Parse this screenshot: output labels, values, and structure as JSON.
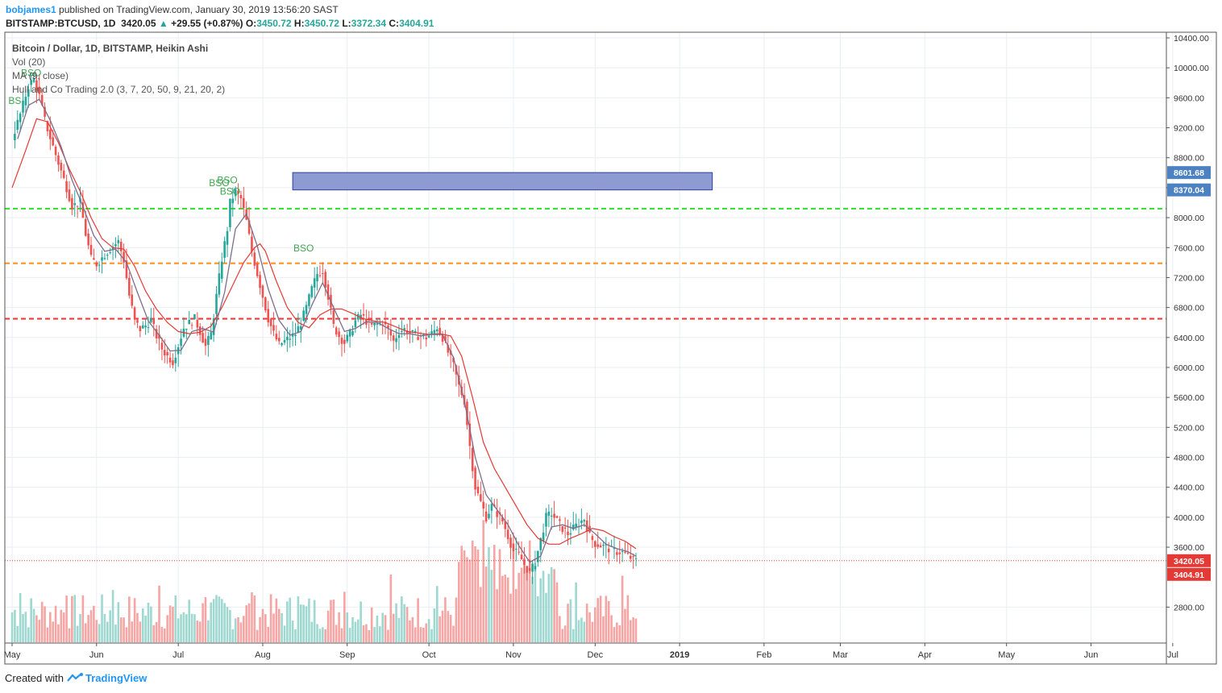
{
  "header": {
    "user": "bobjames1",
    "published": "published on TradingView.com, January 30, 2019 13:56:20 SAST",
    "symbol": "BITSTAMP:BTCUSD, 1D",
    "last": "3420.05",
    "change": "+29.55 (+0.87%)",
    "open_label": "O:",
    "open": "3450.72",
    "high_label": "H:",
    "high": "3450.72",
    "low_label": "L:",
    "low": "3372.34",
    "close_label": "C:",
    "close": "3404.91"
  },
  "legend": {
    "title": "Bitcoin / Dollar, 1D, BITSTAMP, Heikin Ashi",
    "vol": "Vol (20)",
    "ma": "MA (9, close)",
    "hc": "Hull and Co Trading 2.0 (3, 7, 20, 50, 9, 21, 20, 2)"
  },
  "footer": {
    "created": "Created with",
    "brand": "TradingView"
  },
  "colors": {
    "up": "#26a69a",
    "down": "#ef5350",
    "vol_up": "#9ed8d0",
    "vol_down": "#f5a5a3",
    "ma_fast": "#7e6d8a",
    "ma_slow": "#e53935",
    "green_level": "#38e038",
    "orange_level": "#ff9933",
    "red_level": "#f23c3c",
    "zone": "#8d9bd2",
    "label_blue": "#4c82c2",
    "label_red": "#e53935",
    "bso": "#3ea64d"
  },
  "chart_data": {
    "type": "candlestick",
    "style": "Heikin Ashi",
    "ylim": [
      2600,
      10400
    ],
    "y_ticks": [
      "10400.00",
      "10000.00",
      "9600.00",
      "9200.00",
      "8800.00",
      "8400.00",
      "8000.00",
      "7600.00",
      "7200.00",
      "6800.00",
      "6400.00",
      "6000.00",
      "5600.00",
      "5200.00",
      "4800.00",
      "4400.00",
      "4000.00",
      "3600.00",
      "2800.00"
    ],
    "x_ticks": [
      "May",
      "Jun",
      "Jul",
      "Aug",
      "Sep",
      "Oct",
      "Nov",
      "Dec",
      "2019",
      "Feb",
      "Mar",
      "Apr",
      "May",
      "Jun",
      "Jul"
    ],
    "x_tick_days": [
      0,
      31,
      61,
      92,
      123,
      153,
      184,
      214,
      245,
      276,
      304,
      335,
      365,
      396,
      426
    ],
    "price_series": [
      [
        0,
        9050
      ],
      [
        3,
        9380
      ],
      [
        6,
        9760
      ],
      [
        8,
        9850
      ],
      [
        10,
        9620
      ],
      [
        12,
        9300
      ],
      [
        15,
        8950
      ],
      [
        18,
        8620
      ],
      [
        20,
        8400
      ],
      [
        22,
        8160
      ],
      [
        25,
        8200
      ],
      [
        27,
        7780
      ],
      [
        29,
        7450
      ],
      [
        31,
        7380
      ],
      [
        34,
        7510
      ],
      [
        37,
        7620
      ],
      [
        39,
        7680
      ],
      [
        41,
        7430
      ],
      [
        43,
        6960
      ],
      [
        45,
        6620
      ],
      [
        47,
        6510
      ],
      [
        49,
        6560
      ],
      [
        51,
        6630
      ],
      [
        53,
        6420
      ],
      [
        55,
        6250
      ],
      [
        57,
        6150
      ],
      [
        59,
        6080
      ],
      [
        61,
        6300
      ],
      [
        63,
        6530
      ],
      [
        65,
        6590
      ],
      [
        67,
        6650
      ],
      [
        69,
        6480
      ],
      [
        71,
        6280
      ],
      [
        73,
        6450
      ],
      [
        75,
        6950
      ],
      [
        77,
        7450
      ],
      [
        79,
        7850
      ],
      [
        80,
        8200
      ],
      [
        82,
        8350
      ],
      [
        84,
        8250
      ],
      [
        86,
        7950
      ],
      [
        88,
        7550
      ],
      [
        90,
        7250
      ],
      [
        92,
        6950
      ],
      [
        94,
        6650
      ],
      [
        96,
        6450
      ],
      [
        98,
        6300
      ],
      [
        100,
        6350
      ],
      [
        102,
        6400
      ],
      [
        104,
        6450
      ],
      [
        106,
        6600
      ],
      [
        108,
        6800
      ],
      [
        110,
        7050
      ],
      [
        112,
        7250
      ],
      [
        114,
        7300
      ],
      [
        116,
        6950
      ],
      [
        118,
        6550
      ],
      [
        120,
        6420
      ],
      [
        122,
        6330
      ],
      [
        124,
        6450
      ],
      [
        126,
        6620
      ],
      [
        128,
        6700
      ],
      [
        130,
        6620
      ],
      [
        132,
        6550
      ],
      [
        134,
        6580
      ],
      [
        136,
        6600
      ],
      [
        138,
        6500
      ],
      [
        140,
        6350
      ],
      [
        142,
        6480
      ],
      [
        144,
        6510
      ],
      [
        146,
        6460
      ],
      [
        148,
        6430
      ],
      [
        150,
        6420
      ],
      [
        152,
        6400
      ],
      [
        154,
        6450
      ],
      [
        156,
        6540
      ],
      [
        158,
        6400
      ],
      [
        160,
        6200
      ],
      [
        162,
        6020
      ],
      [
        164,
        5750
      ],
      [
        166,
        5550
      ],
      [
        168,
        4950
      ],
      [
        170,
        4400
      ],
      [
        172,
        4200
      ],
      [
        174,
        4000
      ],
      [
        176,
        4150
      ],
      [
        178,
        4050
      ],
      [
        180,
        3950
      ],
      [
        182,
        3750
      ],
      [
        184,
        3550
      ],
      [
        186,
        3500
      ],
      [
        188,
        3370
      ],
      [
        190,
        3250
      ],
      [
        192,
        3400
      ],
      [
        194,
        3700
      ],
      [
        196,
        4000
      ],
      [
        198,
        4050
      ],
      [
        200,
        3950
      ],
      [
        202,
        3850
      ],
      [
        204,
        3780
      ],
      [
        206,
        3850
      ],
      [
        208,
        3920
      ],
      [
        210,
        3980
      ],
      [
        212,
        3750
      ],
      [
        214,
        3650
      ],
      [
        216,
        3620
      ],
      [
        218,
        3600
      ],
      [
        220,
        3560
      ],
      [
        222,
        3540
      ],
      [
        224,
        3530
      ],
      [
        226,
        3490
      ],
      [
        228,
        3430
      ],
      [
        229,
        3420
      ]
    ],
    "ma_9": [
      [
        2,
        9050
      ],
      [
        6,
        9500
      ],
      [
        10,
        9580
      ],
      [
        14,
        9300
      ],
      [
        18,
        8950
      ],
      [
        22,
        8500
      ],
      [
        26,
        8150
      ],
      [
        30,
        7760
      ],
      [
        34,
        7550
      ],
      [
        38,
        7580
      ],
      [
        42,
        7400
      ],
      [
        46,
        7000
      ],
      [
        50,
        6620
      ],
      [
        54,
        6430
      ],
      [
        58,
        6220
      ],
      [
        62,
        6230
      ],
      [
        66,
        6480
      ],
      [
        70,
        6520
      ],
      [
        74,
        6470
      ],
      [
        78,
        7000
      ],
      [
        82,
        7850
      ],
      [
        86,
        8050
      ],
      [
        90,
        7620
      ],
      [
        94,
        7050
      ],
      [
        98,
        6630
      ],
      [
        102,
        6430
      ],
      [
        106,
        6480
      ],
      [
        110,
        6830
      ],
      [
        114,
        7130
      ],
      [
        118,
        6800
      ],
      [
        122,
        6480
      ],
      [
        126,
        6520
      ],
      [
        130,
        6610
      ],
      [
        134,
        6600
      ],
      [
        138,
        6520
      ],
      [
        142,
        6450
      ],
      [
        146,
        6450
      ],
      [
        150,
        6420
      ],
      [
        154,
        6440
      ],
      [
        158,
        6440
      ],
      [
        162,
        6130
      ],
      [
        166,
        5550
      ],
      [
        170,
        4800
      ],
      [
        174,
        4300
      ],
      [
        178,
        4100
      ],
      [
        182,
        3900
      ],
      [
        186,
        3620
      ],
      [
        190,
        3400
      ],
      [
        194,
        3480
      ],
      [
        198,
        3870
      ],
      [
        202,
        3900
      ],
      [
        206,
        3850
      ],
      [
        210,
        3900
      ],
      [
        214,
        3780
      ],
      [
        218,
        3640
      ],
      [
        222,
        3580
      ],
      [
        226,
        3540
      ],
      [
        229,
        3480
      ]
    ],
    "ma_slow": [
      [
        0,
        8400
      ],
      [
        5,
        8900
      ],
      [
        9,
        9320
      ],
      [
        13,
        9280
      ],
      [
        17,
        9000
      ],
      [
        21,
        8650
      ],
      [
        25,
        8350
      ],
      [
        29,
        8000
      ],
      [
        33,
        7720
      ],
      [
        37,
        7600
      ],
      [
        41,
        7580
      ],
      [
        45,
        7350
      ],
      [
        49,
        7020
      ],
      [
        53,
        6780
      ],
      [
        57,
        6600
      ],
      [
        61,
        6480
      ],
      [
        65,
        6450
      ],
      [
        69,
        6470
      ],
      [
        73,
        6550
      ],
      [
        77,
        6800
      ],
      [
        81,
        7100
      ],
      [
        85,
        7400
      ],
      [
        89,
        7600
      ],
      [
        91,
        7650
      ],
      [
        93,
        7550
      ],
      [
        97,
        7150
      ],
      [
        101,
        6800
      ],
      [
        105,
        6600
      ],
      [
        109,
        6530
      ],
      [
        113,
        6700
      ],
      [
        117,
        6780
      ],
      [
        121,
        6780
      ],
      [
        125,
        6720
      ],
      [
        129,
        6650
      ],
      [
        133,
        6620
      ],
      [
        137,
        6600
      ],
      [
        141,
        6540
      ],
      [
        145,
        6480
      ],
      [
        149,
        6460
      ],
      [
        153,
        6440
      ],
      [
        157,
        6450
      ],
      [
        161,
        6420
      ],
      [
        165,
        6150
      ],
      [
        169,
        5600
      ],
      [
        173,
        5000
      ],
      [
        177,
        4650
      ],
      [
        181,
        4400
      ],
      [
        185,
        4150
      ],
      [
        189,
        3900
      ],
      [
        193,
        3720
      ],
      [
        197,
        3640
      ],
      [
        201,
        3640
      ],
      [
        205,
        3720
      ],
      [
        209,
        3780
      ],
      [
        213,
        3850
      ],
      [
        217,
        3820
      ],
      [
        221,
        3740
      ],
      [
        225,
        3680
      ],
      [
        229,
        3580
      ]
    ],
    "horizontal_levels": [
      8120,
      7390,
      6650
    ],
    "zone": {
      "from_day": 103,
      "to_day": 257,
      "low": 8370.04,
      "high": 8601.68
    },
    "price_labels": [
      "8601.68",
      "8370.04",
      "3420.05",
      "3404.91"
    ],
    "last_price": 3420.05,
    "annotations": [
      {
        "text": "BSO",
        "day": 7,
        "price": 9890
      },
      {
        "text": "BS",
        "day": 1,
        "price": 9520
      },
      {
        "text": "BSO",
        "day": 76,
        "price": 8420
      },
      {
        "text": "BSO",
        "day": 79,
        "price": 8460
      },
      {
        "text": "BSO",
        "day": 80,
        "price": 8310
      },
      {
        "text": "BSO",
        "day": 107,
        "price": 7550
      }
    ]
  }
}
